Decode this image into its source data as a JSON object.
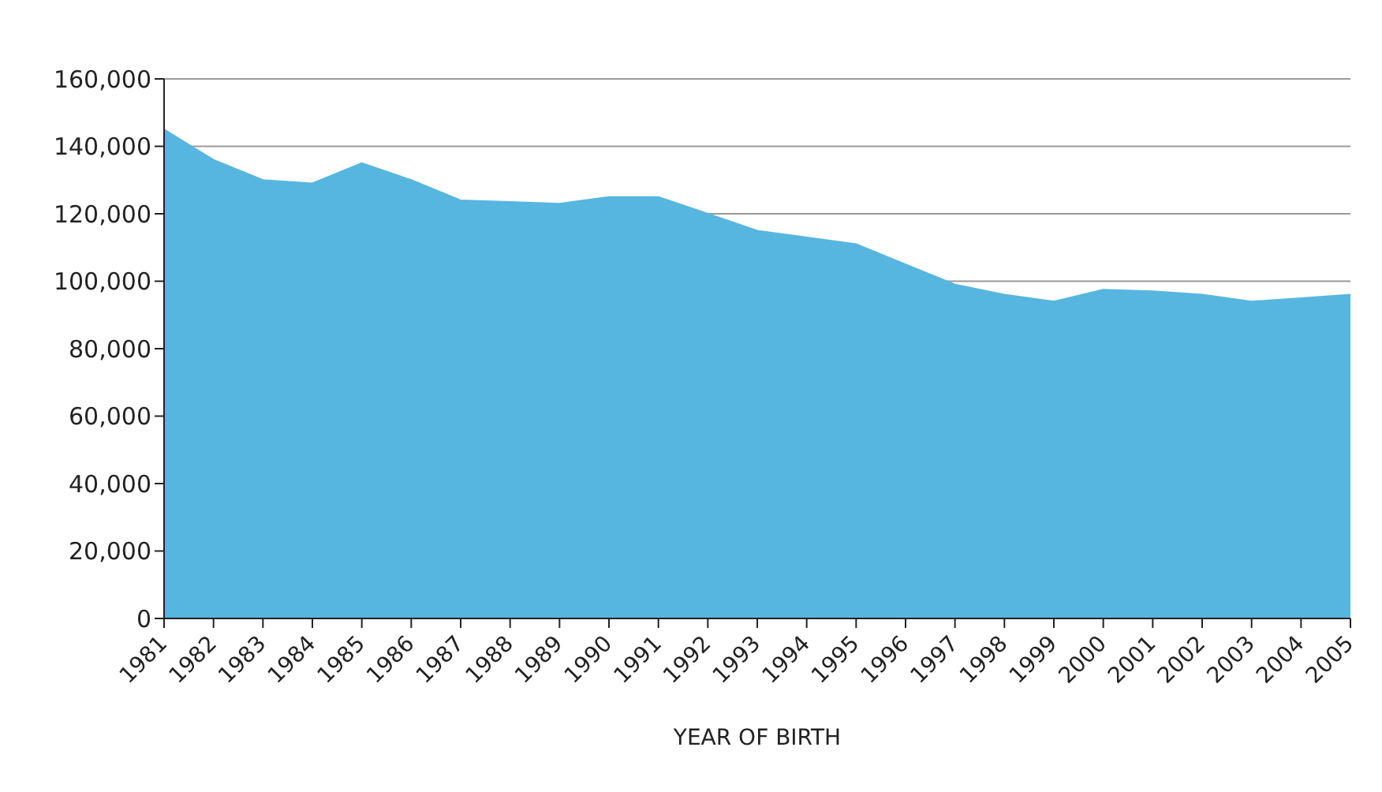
{
  "chart_data": {
    "type": "area",
    "xlabel": "YEAR OF BIRTH",
    "categories": [
      "1981",
      "1982",
      "1983",
      "1984",
      "1985",
      "1986",
      "1987",
      "1988",
      "1989",
      "1990",
      "1991",
      "1992",
      "1993",
      "1994",
      "1995",
      "1996",
      "1997",
      "1998",
      "1999",
      "2000",
      "2001",
      "2002",
      "2003",
      "2004",
      "2005"
    ],
    "values": [
      145000,
      136000,
      130000,
      129000,
      135000,
      130000,
      124000,
      123500,
      123000,
      125000,
      125000,
      120000,
      115000,
      113000,
      111000,
      105000,
      99000,
      96000,
      94000,
      97500,
      97000,
      96000,
      94000,
      95000,
      96000
    ],
    "color": "#56b6e0",
    "ylim": [
      0,
      160000
    ],
    "yticks": [
      {
        "value": 0,
        "label": "0"
      },
      {
        "value": 20000,
        "label": "20,000"
      },
      {
        "value": 40000,
        "label": "40,000"
      },
      {
        "value": 60000,
        "label": "60,000"
      },
      {
        "value": 80000,
        "label": "80,000"
      },
      {
        "value": 100000,
        "label": "100,000"
      },
      {
        "value": 120000,
        "label": "120,000"
      },
      {
        "value": 140000,
        "label": "140,000"
      },
      {
        "value": 160000,
        "label": "160,000"
      }
    ],
    "grid": "y",
    "legend": false
  }
}
